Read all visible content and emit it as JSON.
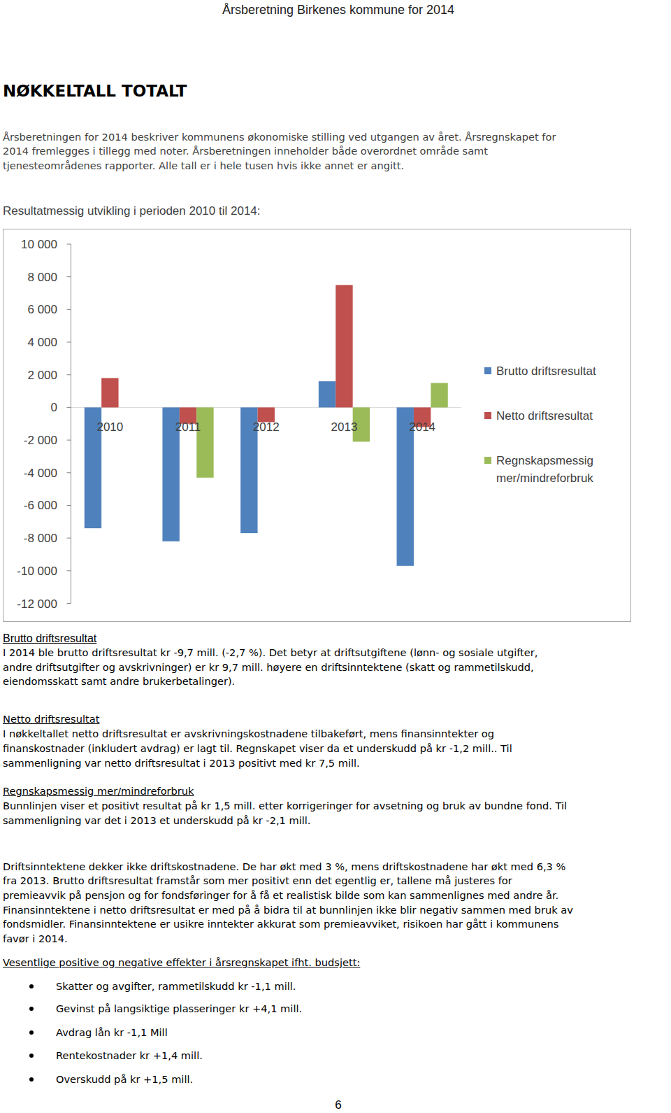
{
  "header": {
    "running_title": "Årsberetning Birkenes kommune for 2014"
  },
  "title": "NØKKELTALL TOTALT",
  "intro": [
    "Årsberetningen for 2014 beskriver kommunens økonomiske stilling ved utgangen av året. Årsregnskapet for",
    "2014 fremlegges i tillegg med noter. Årsberetningen inneholder både overordnet område samt",
    "tjenesteområdenes rapporter. Alle tall er i hele tusen hvis ikke annet er angitt."
  ],
  "chart_caption": "Resultatmessig utvikling i perioden 2010 til 2014:",
  "chart_data": {
    "type": "bar",
    "categories": [
      "2010",
      "2011",
      "2012",
      "2013",
      "2014"
    ],
    "series": [
      {
        "name": "Brutto driftsresultat",
        "color": "#4f81bd",
        "values": [
          -7400,
          -8200,
          -7700,
          1600,
          -9700
        ]
      },
      {
        "name": "Netto driftsresultat",
        "color": "#c0504d",
        "values": [
          1800,
          -1000,
          -900,
          7500,
          -1200
        ]
      },
      {
        "name": "Regnskapsmessig mer/mindreforbruk",
        "color": "#9bbb59",
        "values": [
          null,
          -4300,
          null,
          -2100,
          1500
        ]
      }
    ],
    "ylim": [
      -12000,
      10000
    ],
    "yticks": [
      {
        "value": 10000,
        "label": "10 000"
      },
      {
        "value": 8000,
        "label": "8 000"
      },
      {
        "value": 6000,
        "label": "6 000"
      },
      {
        "value": 4000,
        "label": "4 000"
      },
      {
        "value": 2000,
        "label": "2 000"
      },
      0,
      {
        "value": -2000,
        "label": "-2 000"
      },
      {
        "value": -4000,
        "label": "-4 000"
      },
      {
        "value": -6000,
        "label": "-6 000"
      },
      {
        "value": -8000,
        "label": "-8 000"
      },
      {
        "value": -10000,
        "label": "-10 000"
      },
      {
        "value": -12000,
        "label": "-12 000"
      }
    ],
    "grid": false,
    "legend": "right"
  },
  "sections": [
    {
      "heading": "Brutto driftsresultat",
      "lines": [
        "I 2014 ble brutto driftsresultat kr -9,7 mill. (-2,7 %). Det betyr at driftsutgiftene (lønn- og sosiale utgifter,",
        "andre driftsutgifter og avskrivninger) er kr 9,7 mill. høyere en driftsinntektene (skatt og rammetilskudd,",
        "eiendomsskatt samt andre brukerbetalinger)."
      ]
    },
    {
      "heading": "Netto driftsresultat",
      "lines": [
        "I nøkkeltallet netto driftsresultat er avskrivningskostnadene tilbakeført, mens finansinntekter og",
        "finanskostnader (inkludert avdrag) er lagt til. Regnskapet viser da et underskudd på kr -1,2 mill.. Til",
        "sammenligning var netto driftsresultat i 2013 positivt med kr 7,5 mill."
      ]
    },
    {
      "heading": "Regnskapsmessig mer/mindreforbruk",
      "lines": [
        "Bunnlinjen viser et positivt resultat på kr 1,5 mill. etter korrigeringer for avsetning og bruk av bundne fond. Til",
        "sammenligning var det i 2013 et underskudd på kr -2,1 mill."
      ]
    }
  ],
  "paragraph": [
    "Driftsinntektene dekker ikke driftskostnadene. De har økt med 3 %, mens driftskostnadene har økt med 6,3 %",
    "fra 2013. Brutto driftsresultat framstår som mer positivt enn det egentlig er, tallene må justeres for",
    "premieavvik på pensjon og for fondsføringer for å få et realistisk bilde som kan sammenlignes med andre år.",
    "Finansinntektene i netto driftsresultat er med på å bidra til at bunnlinjen ikke blir negativ sammen med bruk av",
    "fondsmidler. Finansinntektene er usikre inntekter akkurat som premieavviket, risikoen har gått i kommunens",
    "favør i 2014."
  ],
  "effects": {
    "heading": "Vesentlige positive og negative effekter i årsregnskapet ifht. budsjett:",
    "items": [
      "Skatter og avgifter, rammetilskudd kr -1,1 mill.",
      "Gevinst på langsiktige plasseringer kr +4,1 mill.",
      "Avdrag lån kr -1,1 Mill",
      "Rentekostnader kr +1,4 mill.",
      "Overskudd på kr +1,5 mill."
    ]
  },
  "page_number": 6
}
